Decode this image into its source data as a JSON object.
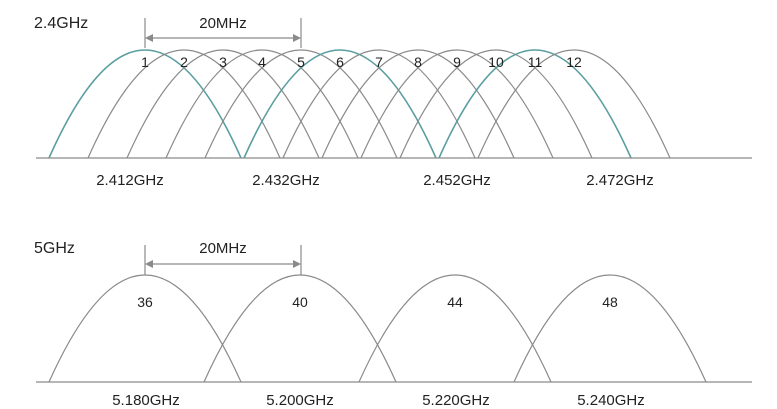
{
  "colors": {
    "curve": "#8a8a8a",
    "highlight": "#5a9ea0",
    "axis": "#8a8a8a",
    "text": "#222222"
  },
  "band_24": {
    "title": "2.4GHz",
    "width_label": "20MHz",
    "channels": [
      "1",
      "2",
      "3",
      "4",
      "5",
      "6",
      "7",
      "8",
      "9",
      "10",
      "11",
      "12"
    ],
    "highlighted_channels": [
      "1",
      "6",
      "11"
    ],
    "frequency_labels": [
      "2.412GHz",
      "2.432GHz",
      "2.452GHz",
      "2.472GHz"
    ]
  },
  "band_5": {
    "title": "5GHz",
    "width_label": "20MHz",
    "channels": [
      "36",
      "40",
      "44",
      "48"
    ],
    "frequency_labels": [
      "5.180GHz",
      "5.200GHz",
      "5.220GHz",
      "5.240GHz"
    ]
  }
}
